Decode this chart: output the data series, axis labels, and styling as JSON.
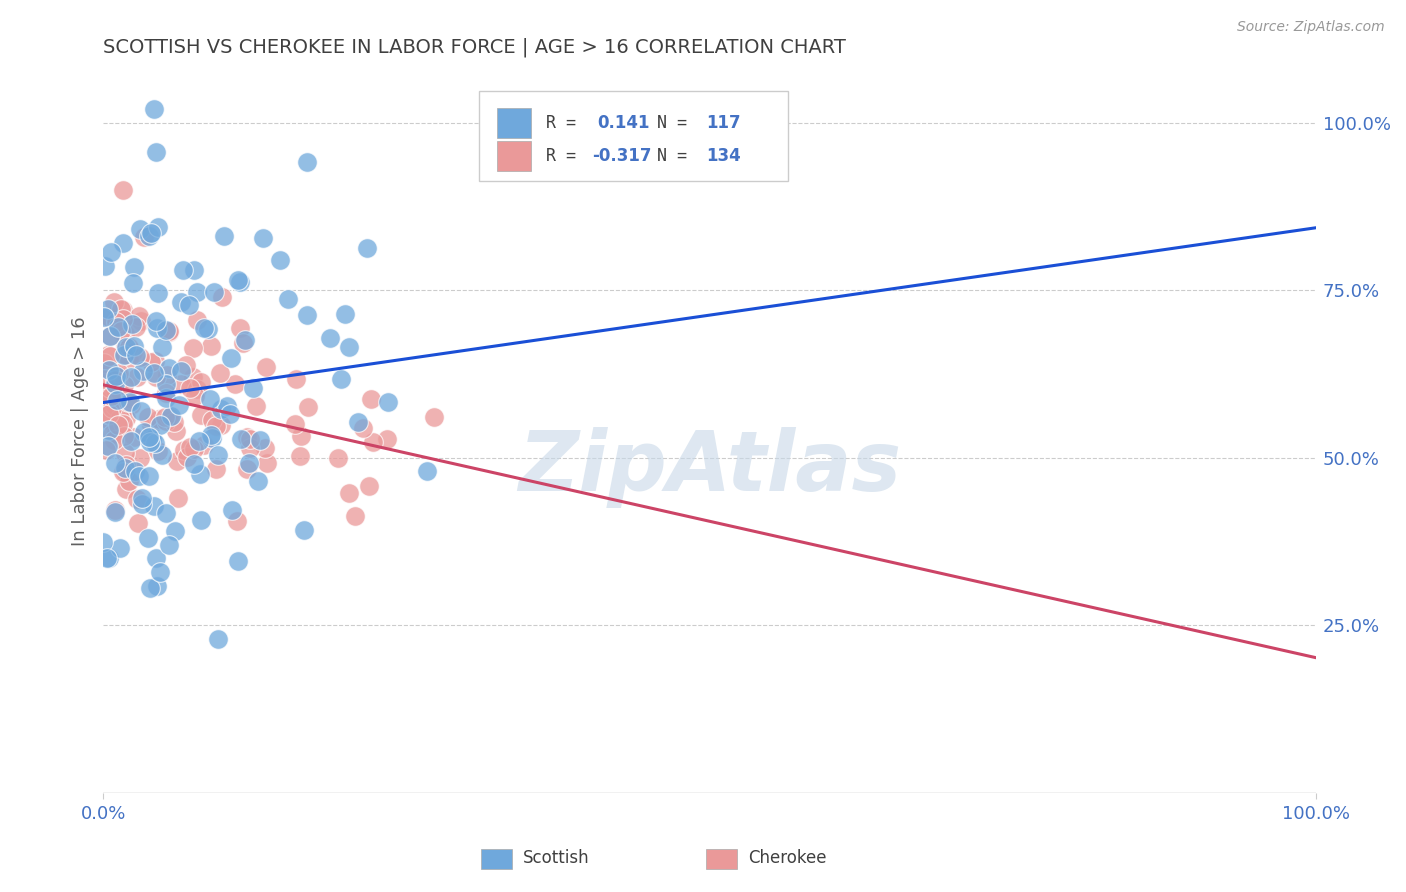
{
  "title": "SCOTTISH VS CHEROKEE IN LABOR FORCE | AGE > 16 CORRELATION CHART",
  "source": "Source: ZipAtlas.com",
  "ylabel": "In Labor Force | Age > 16",
  "ytick_labels": [
    "25.0%",
    "50.0%",
    "75.0%",
    "100.0%"
  ],
  "ytick_values": [
    0.25,
    0.5,
    0.75,
    1.0
  ],
  "xlim": [
    0.0,
    1.0
  ],
  "ylim": [
    0.0,
    1.08
  ],
  "scottish_R": 0.141,
  "scottish_N": 117,
  "cherokee_R": -0.317,
  "cherokee_N": 134,
  "blue_color": "#6fa8dc",
  "pink_color": "#ea9999",
  "blue_line_color": "#1a4fd6",
  "pink_line_color": "#cc4466",
  "title_color": "#404040",
  "axis_label_color": "#606060",
  "tick_label_color": "#4472c4",
  "watermark_color": "#c8d8e8",
  "grid_color": "#cccccc",
  "background_color": "#ffffff"
}
